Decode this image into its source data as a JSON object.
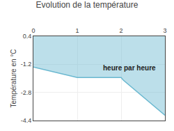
{
  "chart_data": {
    "type": "area",
    "title": "Evolution de la température",
    "ylabel": "Température en °C",
    "x": [
      0,
      1.0,
      2.0,
      2.05,
      3.0
    ],
    "values": [
      -1.35,
      -1.95,
      -1.95,
      -2.1,
      -4.1
    ],
    "color": "#6ab8d0",
    "xlim": [
      0,
      3
    ],
    "xticks": [
      0,
      1,
      2,
      3
    ],
    "ylim": [
      -4.4,
      0.4
    ],
    "yticks": [
      0.4,
      -1.2,
      -2.8,
      -4.4
    ],
    "grid": true,
    "annotations": [
      {
        "text": "heure par heure",
        "x": 1.55,
        "y": -1.1
      }
    ]
  }
}
